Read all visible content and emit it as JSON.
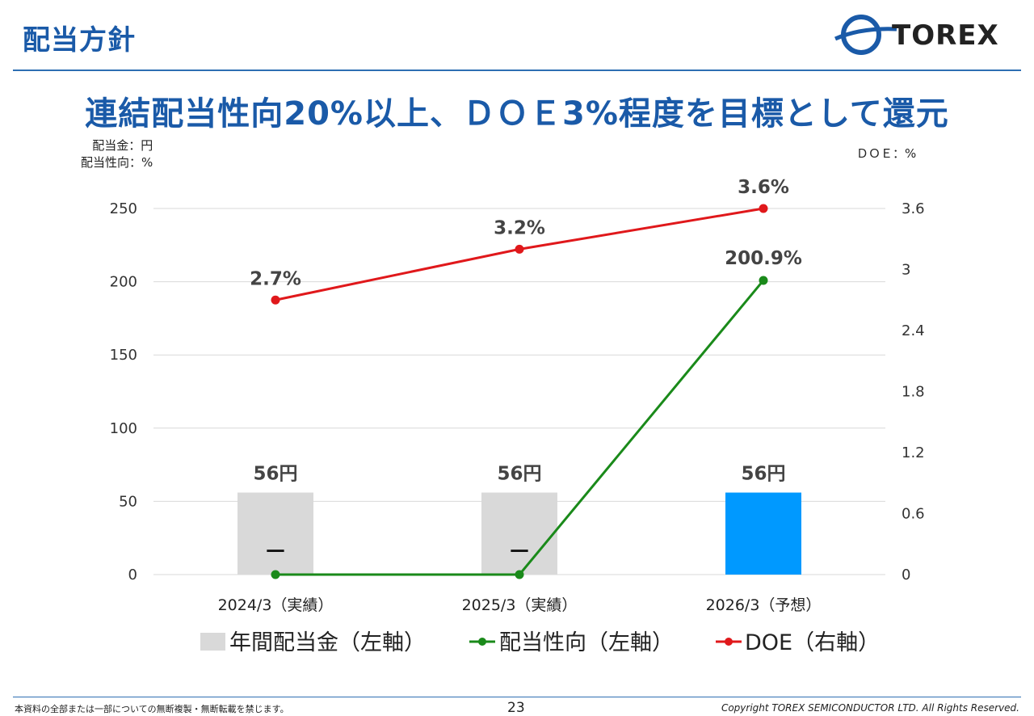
{
  "header": {
    "title": "配当方針",
    "logo_text": "TOREX"
  },
  "headline": "連結配当性向20%以上、ＤＯＥ3%程度を目標として還元",
  "units": {
    "left_line1": "配当金：円",
    "left_line2": "配当性向：%",
    "right": "ＤＯＥ：%"
  },
  "colors": {
    "brand_blue": "#1a5aa8",
    "bar_actual": "#d9d9d9",
    "bar_forecast": "#0099ff",
    "payout_line": "#1a8a1a",
    "doe_line": "#e0181b"
  },
  "chart_data": {
    "type": "bar",
    "categories": [
      "2024/3（実績）",
      "2025/3（実績）",
      "2026/3（予想）"
    ],
    "y_left": {
      "ylim": [
        0,
        250
      ],
      "ticks": [
        "0",
        "50",
        "100",
        "150",
        "200",
        "250"
      ]
    },
    "y_right": {
      "ylim": [
        0,
        3.6
      ],
      "ticks": [
        "0",
        "0.6",
        "1.2",
        "1.8",
        "2.4",
        "3",
        "3.6"
      ]
    },
    "grid": true,
    "legend_position": "bottom",
    "series": [
      {
        "name": "年間配当金（左軸）",
        "type": "bar",
        "axis": "left",
        "values": [
          56,
          56,
          56
        ],
        "labels": [
          "56円",
          "56円",
          "56円"
        ]
      },
      {
        "name": "配当性向（左軸）",
        "type": "line",
        "axis": "left",
        "values": [
          0,
          0,
          200.9
        ],
        "labels": [
          "－",
          "－",
          "200.9%"
        ]
      },
      {
        "name": "DOE（右軸）",
        "type": "line",
        "axis": "right",
        "values": [
          2.7,
          3.2,
          3.6
        ],
        "labels": [
          "2.7%",
          "3.2%",
          "3.6%"
        ]
      }
    ]
  },
  "footer": {
    "notice": "本資料の全部または一部についての無断複製・無断転載を禁じます。",
    "page": "23",
    "copyright": "Copyright TOREX SEMICONDUCTOR LTD.  All Rights Reserved."
  }
}
